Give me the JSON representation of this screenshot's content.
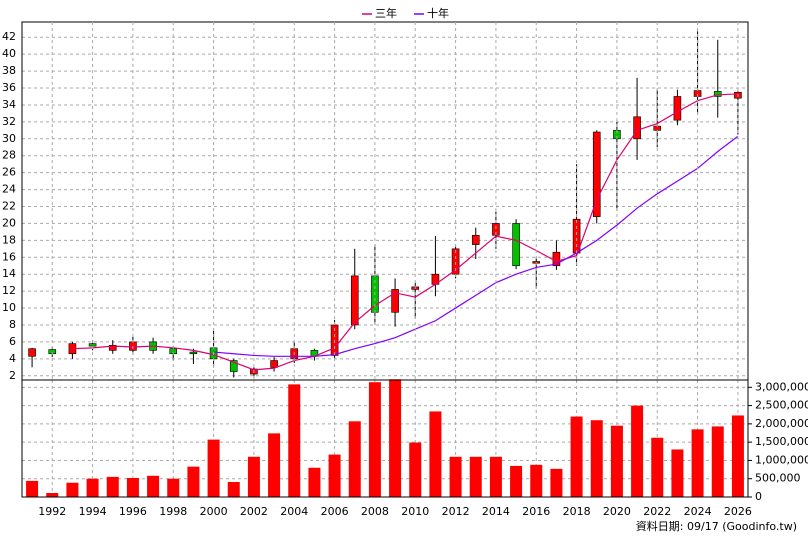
{
  "chart_data": [
    {
      "type": "candlestick",
      "x": [
        1991,
        1992,
        1993,
        1994,
        1995,
        1996,
        1997,
        1998,
        1999,
        2000,
        2001,
        2002,
        2003,
        2004,
        2005,
        2006,
        2007,
        2008,
        2009,
        2010,
        2011,
        2012,
        2013,
        2014,
        2015,
        2016,
        2017,
        2018,
        2019,
        2020,
        2021,
        2022,
        2023,
        2024,
        2025,
        2026
      ],
      "open": [
        4.3,
        5.1,
        4.6,
        5.8,
        5.0,
        5.0,
        6.0,
        5.2,
        4.8,
        5.3,
        3.8,
        2.2,
        3.0,
        4.0,
        5.0,
        4.4,
        8.0,
        13.8,
        9.5,
        12.2,
        12.8,
        14.0,
        17.5,
        18.6,
        20.0,
        15.3,
        15.0,
        16.5,
        20.8,
        31.0,
        30.0,
        31.0,
        32.2,
        35.0,
        35.6,
        34.8
      ],
      "high": [
        5.3,
        5.4,
        6.0,
        6.2,
        6.2,
        6.6,
        6.5,
        5.5,
        5.2,
        7.3,
        4.0,
        3.0,
        4.2,
        6.0,
        5.2,
        8.6,
        17.0,
        17.5,
        13.5,
        13.0,
        18.5,
        17.4,
        19.5,
        21.4,
        20.5,
        16.0,
        18.0,
        27.0,
        31.0,
        32.0,
        37.2,
        35.8,
        35.8,
        42.7,
        41.7,
        35.6
      ],
      "low": [
        3.0,
        4.2,
        4.0,
        5.0,
        4.6,
        4.5,
        4.6,
        3.8,
        3.4,
        3.0,
        1.8,
        1.8,
        2.5,
        3.5,
        3.8,
        4.0,
        7.5,
        8.0,
        7.8,
        8.8,
        11.4,
        13.5,
        15.8,
        17.0,
        14.6,
        12.3,
        14.5,
        15.0,
        20.0,
        21.5,
        27.5,
        29.0,
        31.6,
        33.0,
        32.5,
        30.5
      ],
      "close": [
        5.2,
        4.6,
        5.8,
        5.5,
        5.6,
        6.0,
        5.0,
        4.6,
        4.6,
        4.0,
        2.5,
        2.8,
        3.8,
        5.2,
        4.3,
        8.0,
        13.8,
        9.5,
        12.2,
        12.5,
        14.0,
        17.0,
        18.6,
        20.0,
        15.0,
        15.5,
        16.6,
        20.5,
        30.8,
        30.0,
        32.6,
        31.5,
        35.0,
        35.7,
        35.0,
        35.5
      ],
      "up_color": "#ff0000",
      "down_color": "#00c000",
      "series": [
        {
          "name": "三年",
          "color": "#e0006f",
          "values": [
            null,
            null,
            5.2,
            5.3,
            5.5,
            5.4,
            5.5,
            5.3,
            5.0,
            4.5,
            3.6,
            2.7,
            2.9,
            3.8,
            4.3,
            5.3,
            8.3,
            10.3,
            11.8,
            11.3,
            12.8,
            14.5,
            16.5,
            18.5,
            18.0,
            16.8,
            15.5,
            16.2,
            22.8,
            27.5,
            31.0,
            31.8,
            33.2,
            34.5,
            35.2,
            35.3
          ]
        },
        {
          "name": "十年",
          "color": "#8000ff",
          "values": [
            null,
            null,
            null,
            null,
            null,
            null,
            null,
            null,
            null,
            4.8,
            4.6,
            4.4,
            4.3,
            4.3,
            4.3,
            4.5,
            5.2,
            5.8,
            6.5,
            7.5,
            8.5,
            10.0,
            11.5,
            13.0,
            14.0,
            14.8,
            15.2,
            16.5,
            18.0,
            19.8,
            21.8,
            23.5,
            25.0,
            26.5,
            28.5,
            30.3
          ]
        }
      ],
      "xlim": [
        1990.5,
        2026.5
      ],
      "ylim": [
        1.5,
        43.8
      ],
      "yticks": [
        2,
        4,
        6,
        8,
        10,
        12,
        14,
        16,
        18,
        20,
        22,
        24,
        26,
        28,
        30,
        32,
        34,
        36,
        38,
        40,
        42
      ],
      "grid": true
    },
    {
      "type": "bar",
      "x": [
        1991,
        1992,
        1993,
        1994,
        1995,
        1996,
        1997,
        1998,
        1999,
        2000,
        2001,
        2002,
        2003,
        2004,
        2005,
        2006,
        2007,
        2008,
        2009,
        2010,
        2011,
        2012,
        2013,
        2014,
        2015,
        2016,
        2017,
        2018,
        2019,
        2020,
        2021,
        2022,
        2023,
        2024,
        2025,
        2026
      ],
      "values": [
        440000,
        110000,
        390000,
        500000,
        550000,
        520000,
        580000,
        500000,
        830000,
        1570000,
        410000,
        1100000,
        1740000,
        3080000,
        800000,
        1160000,
        2070000,
        3140000,
        3220000,
        1490000,
        2340000,
        1100000,
        1100000,
        1100000,
        850000,
        880000,
        770000,
        2200000,
        2100000,
        1950000,
        2500000,
        1620000,
        1300000,
        1850000,
        1930000,
        2230000
      ],
      "color": "#ff0000",
      "xlim": [
        1990.5,
        2026.5
      ],
      "xticks": [
        1992,
        1994,
        1996,
        1998,
        2000,
        2002,
        2004,
        2006,
        2008,
        2010,
        2012,
        2014,
        2016,
        2018,
        2020,
        2022,
        2024,
        2026
      ],
      "ylim": [
        0,
        3200000
      ],
      "yticks": [
        0,
        {
          "value": 500000,
          "label": "500,000"
        },
        {
          "value": 1000000,
          "label": "1,000,000"
        },
        {
          "value": 1500000,
          "label": "1,500,000"
        },
        {
          "value": 2000000,
          "label": "2,000,000"
        },
        {
          "value": 2500000,
          "label": "2,500,000"
        },
        {
          "value": 3000000,
          "label": "3,000,000"
        }
      ],
      "grid": true
    }
  ],
  "footer": "資料日期: 09/17 (Goodinfo.tw)"
}
